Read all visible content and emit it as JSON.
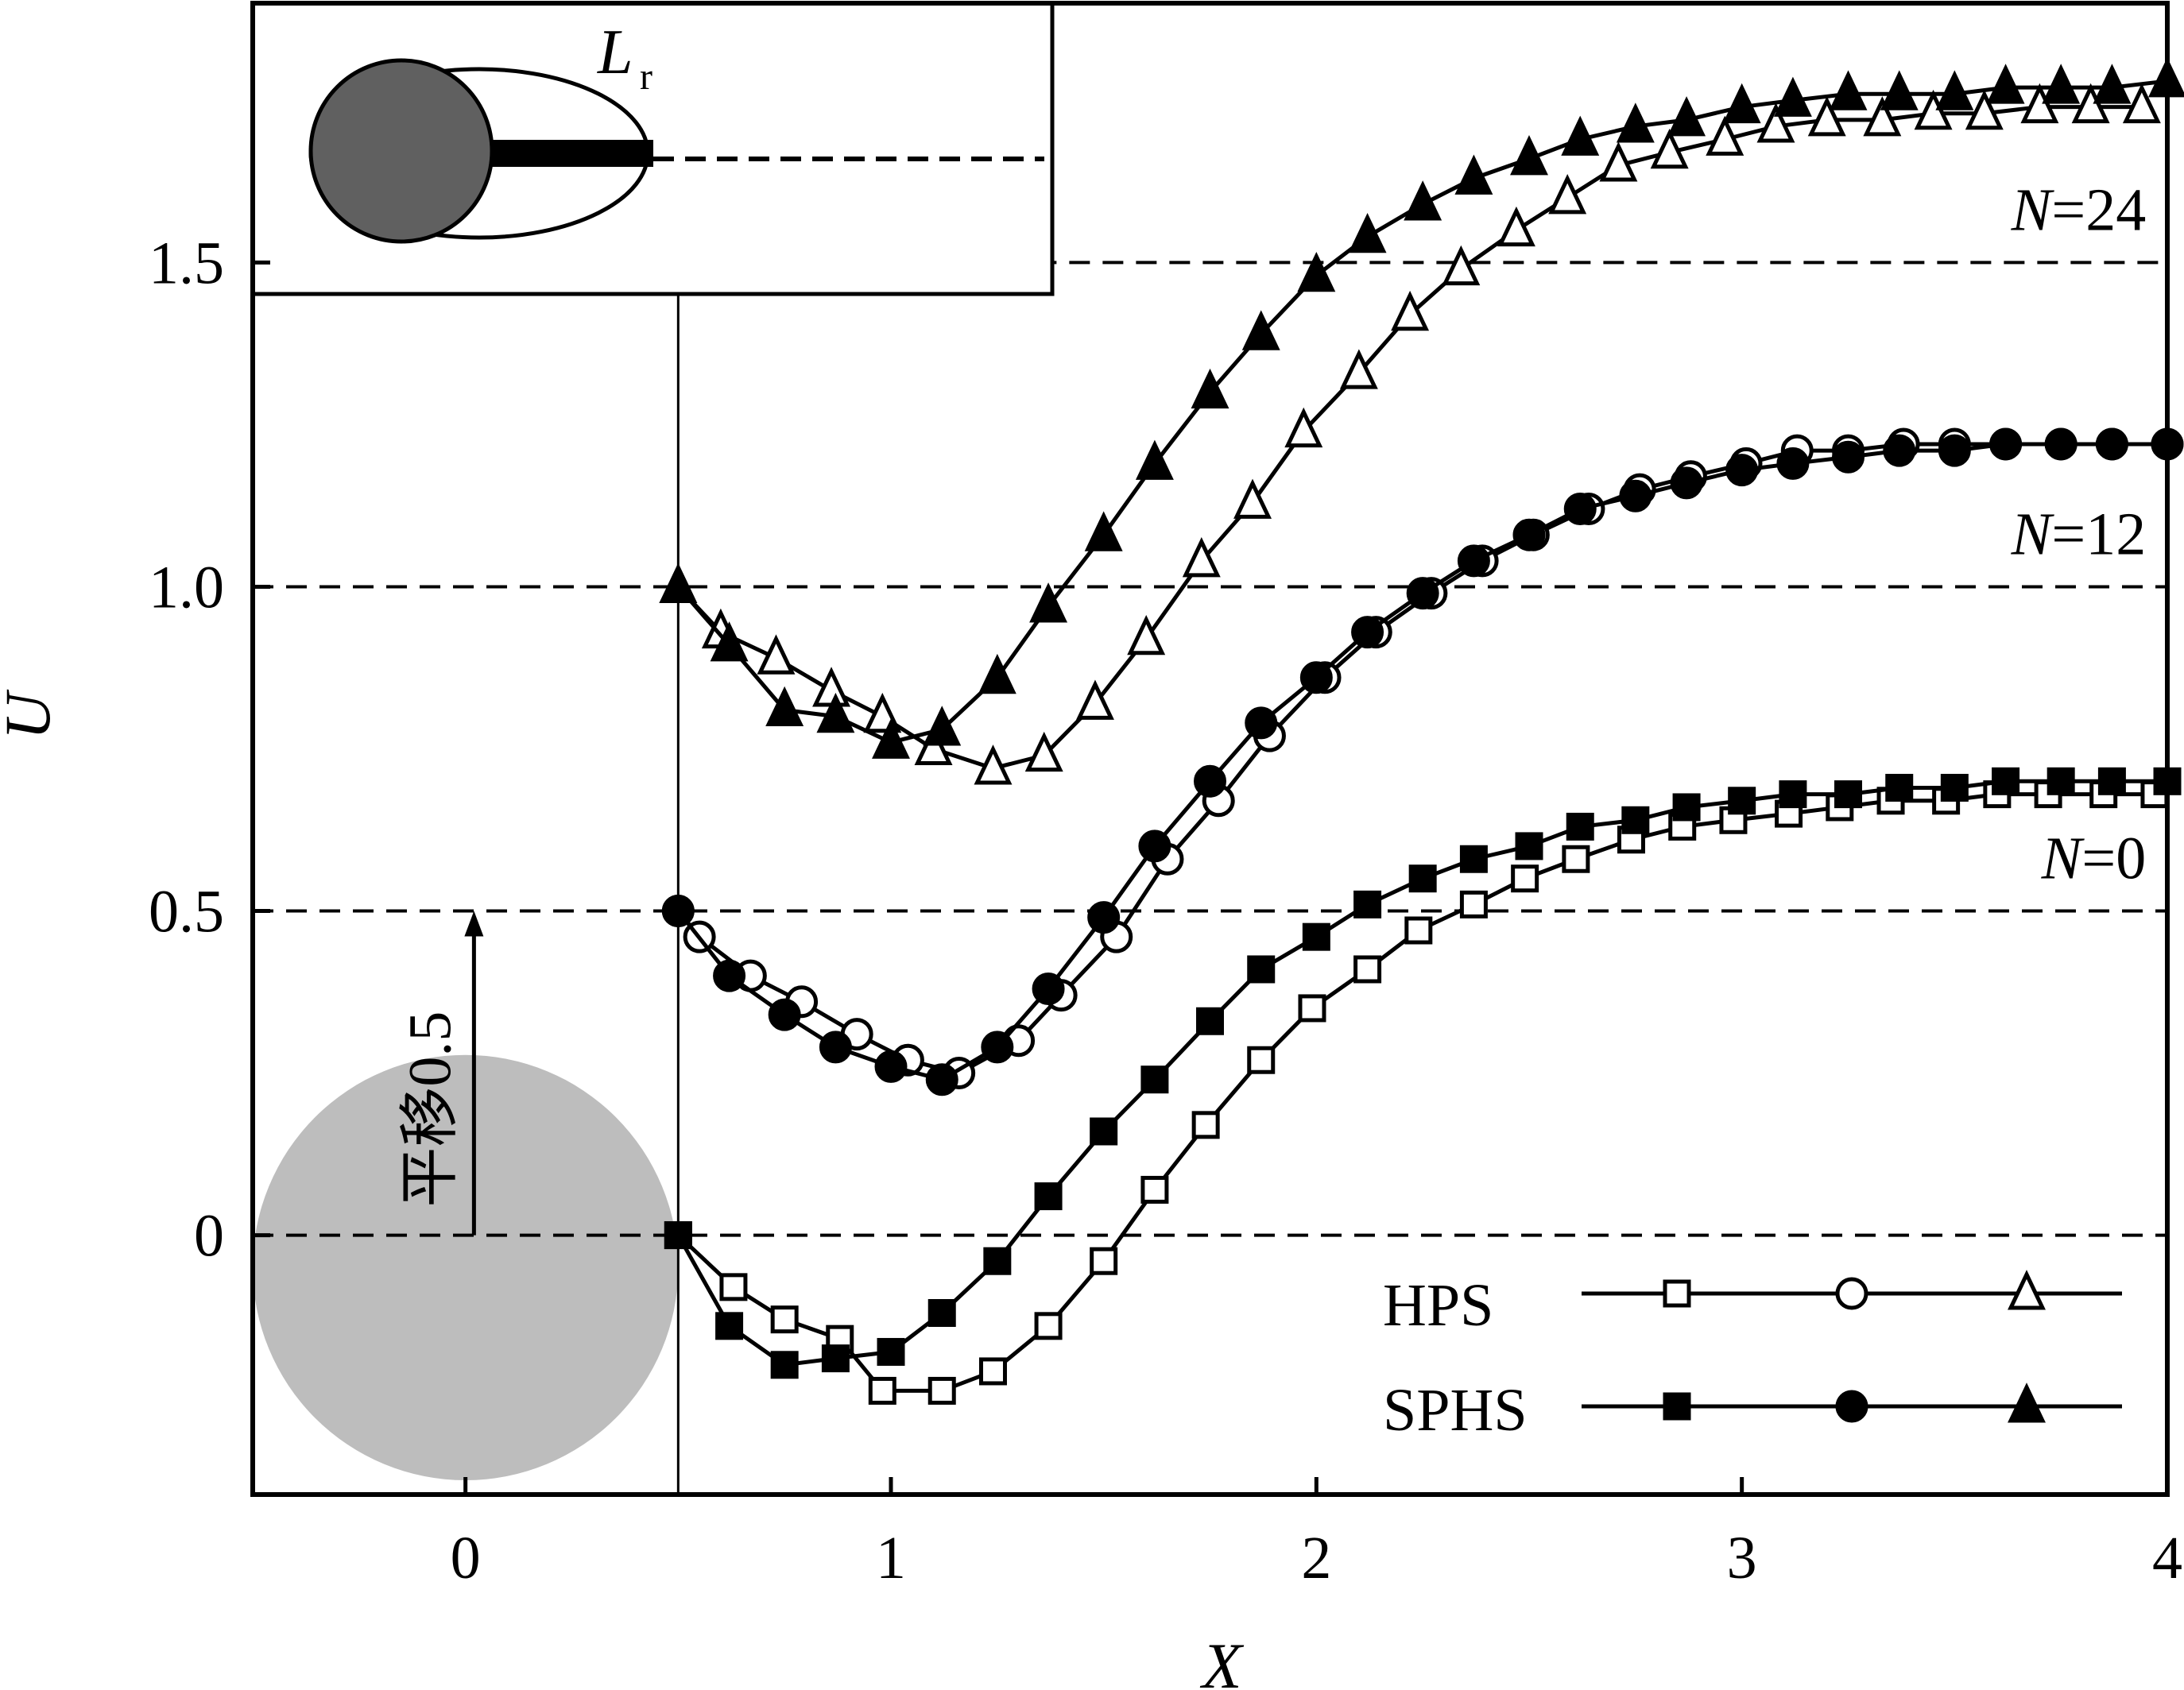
{
  "chart_data": {
    "type": "line",
    "xlabel": "X",
    "ylabel": "U",
    "xlim": [
      -0.5,
      4.0
    ],
    "ylim": [
      -0.4,
      1.9
    ],
    "x_ticks": [
      0,
      1,
      2,
      3,
      4
    ],
    "y_ticks": [
      0,
      0.5,
      1.0,
      1.5
    ],
    "x_tick_labels": [
      "0",
      "1",
      "2",
      "3",
      "4"
    ],
    "y_tick_labels": [
      "0",
      "0.5",
      "1.0",
      "1.5"
    ],
    "reference_lines_y": [
      0,
      0.5,
      1.0,
      1.5
    ],
    "reference_line_x": 0.5,
    "grid": false,
    "legend_position": "bottom-right",
    "legend": {
      "hollow_label": "HPS",
      "filled_label": "SPHS"
    },
    "group_labels": [
      {
        "name": "N",
        "value": "=0",
        "x": 3.95,
        "y": 0.55
      },
      {
        "name": "N",
        "value": "=12",
        "x": 3.95,
        "y": 1.05
      },
      {
        "name": "N",
        "value": "=24",
        "x": 3.95,
        "y": 1.55
      }
    ],
    "cylinder": {
      "center_x": 0,
      "center_y": -0.05,
      "radius": 0.5
    },
    "shift_annotation": {
      "text": "平移0.5",
      "x": 0.02,
      "y_from": 0.0,
      "y_to": 0.5
    },
    "inset": {
      "label_main": "L",
      "label_sub": "r"
    },
    "series": [
      {
        "name": "HPS N=0",
        "marker": "square",
        "filled": false,
        "x": [
          0.5,
          0.63,
          0.75,
          0.88,
          0.98,
          1.12,
          1.24,
          1.37,
          1.5,
          1.62,
          1.74,
          1.87,
          1.99,
          2.12,
          2.24,
          2.37,
          2.49,
          2.61,
          2.74,
          2.86,
          2.98,
          3.11,
          3.23,
          3.35,
          3.48,
          3.6,
          3.72,
          3.85,
          3.97
        ],
        "y": [
          0.0,
          -0.08,
          -0.13,
          -0.16,
          -0.24,
          -0.24,
          -0.21,
          -0.14,
          -0.04,
          0.07,
          0.17,
          0.27,
          0.35,
          0.41,
          0.47,
          0.51,
          0.55,
          0.58,
          0.61,
          0.63,
          0.64,
          0.65,
          0.66,
          0.67,
          0.67,
          0.68,
          0.68,
          0.68,
          0.68
        ]
      },
      {
        "name": "SPHS N=0",
        "marker": "square",
        "filled": true,
        "x": [
          0.5,
          0.62,
          0.75,
          0.87,
          1.0,
          1.12,
          1.25,
          1.37,
          1.5,
          1.62,
          1.75,
          1.87,
          2.0,
          2.12,
          2.25,
          2.37,
          2.5,
          2.62,
          2.75,
          2.87,
          3.0,
          3.12,
          3.25,
          3.37,
          3.5,
          3.62,
          3.75,
          3.87,
          4.0
        ],
        "y": [
          0.0,
          -0.14,
          -0.2,
          -0.19,
          -0.18,
          -0.12,
          -0.04,
          0.06,
          0.16,
          0.24,
          0.33,
          0.41,
          0.46,
          0.51,
          0.55,
          0.58,
          0.6,
          0.63,
          0.64,
          0.66,
          0.67,
          0.68,
          0.68,
          0.69,
          0.69,
          0.7,
          0.7,
          0.7,
          0.7
        ]
      },
      {
        "name": "HPS N=12",
        "marker": "circle",
        "filled": false,
        "x": [
          0.5,
          0.55,
          0.67,
          0.79,
          0.92,
          1.04,
          1.16,
          1.3,
          1.4,
          1.53,
          1.65,
          1.77,
          1.89,
          2.02,
          2.14,
          2.27,
          2.39,
          2.51,
          2.64,
          2.76,
          2.88,
          3.01,
          3.13,
          3.25,
          3.38,
          3.5,
          3.62,
          3.75,
          3.87,
          4.0
        ],
        "y": [
          0.5,
          0.46,
          0.4,
          0.36,
          0.31,
          0.27,
          0.25,
          0.3,
          0.37,
          0.46,
          0.58,
          0.67,
          0.77,
          0.86,
          0.93,
          0.99,
          1.04,
          1.08,
          1.12,
          1.15,
          1.17,
          1.19,
          1.21,
          1.21,
          1.22,
          1.22,
          1.22,
          1.22,
          1.22,
          1.22
        ]
      },
      {
        "name": "SPHS N=12",
        "marker": "circle",
        "filled": true,
        "x": [
          0.5,
          0.62,
          0.75,
          0.87,
          1.0,
          1.12,
          1.25,
          1.37,
          1.5,
          1.62,
          1.75,
          1.87,
          2.0,
          2.12,
          2.25,
          2.37,
          2.5,
          2.62,
          2.75,
          2.87,
          3.0,
          3.12,
          3.25,
          3.37,
          3.5,
          3.62,
          3.75,
          3.87,
          4.0
        ],
        "y": [
          0.5,
          0.4,
          0.34,
          0.29,
          0.26,
          0.24,
          0.29,
          0.38,
          0.49,
          0.6,
          0.7,
          0.79,
          0.86,
          0.93,
          0.99,
          1.04,
          1.08,
          1.12,
          1.14,
          1.16,
          1.18,
          1.19,
          1.2,
          1.21,
          1.21,
          1.22,
          1.22,
          1.22,
          1.22
        ]
      },
      {
        "name": "HPS N=24",
        "marker": "triangle",
        "filled": false,
        "x": [
          0.5,
          0.6,
          0.73,
          0.86,
          0.98,
          1.1,
          1.24,
          1.36,
          1.48,
          1.6,
          1.73,
          1.85,
          1.97,
          2.1,
          2.22,
          2.34,
          2.47,
          2.59,
          2.71,
          2.83,
          2.96,
          3.08,
          3.2,
          3.33,
          3.45,
          3.57,
          3.7,
          3.82,
          3.94
        ],
        "y": [
          1.0,
          0.93,
          0.89,
          0.84,
          0.8,
          0.75,
          0.72,
          0.74,
          0.82,
          0.92,
          1.04,
          1.13,
          1.24,
          1.33,
          1.42,
          1.49,
          1.55,
          1.6,
          1.65,
          1.67,
          1.69,
          1.71,
          1.72,
          1.72,
          1.73,
          1.73,
          1.74,
          1.74,
          1.74
        ]
      },
      {
        "name": "SPHS N=24",
        "marker": "triangle",
        "filled": true,
        "x": [
          0.5,
          0.62,
          0.75,
          0.87,
          1.0,
          1.12,
          1.25,
          1.37,
          1.5,
          1.62,
          1.75,
          1.87,
          2.0,
          2.12,
          2.25,
          2.37,
          2.5,
          2.62,
          2.75,
          2.87,
          3.0,
          3.12,
          3.25,
          3.37,
          3.5,
          3.62,
          3.75,
          3.87,
          4.0
        ],
        "y": [
          1.0,
          0.91,
          0.81,
          0.8,
          0.76,
          0.78,
          0.86,
          0.97,
          1.08,
          1.19,
          1.3,
          1.39,
          1.48,
          1.54,
          1.59,
          1.63,
          1.66,
          1.69,
          1.71,
          1.72,
          1.74,
          1.75,
          1.76,
          1.76,
          1.76,
          1.77,
          1.77,
          1.77,
          1.78
        ]
      }
    ]
  }
}
